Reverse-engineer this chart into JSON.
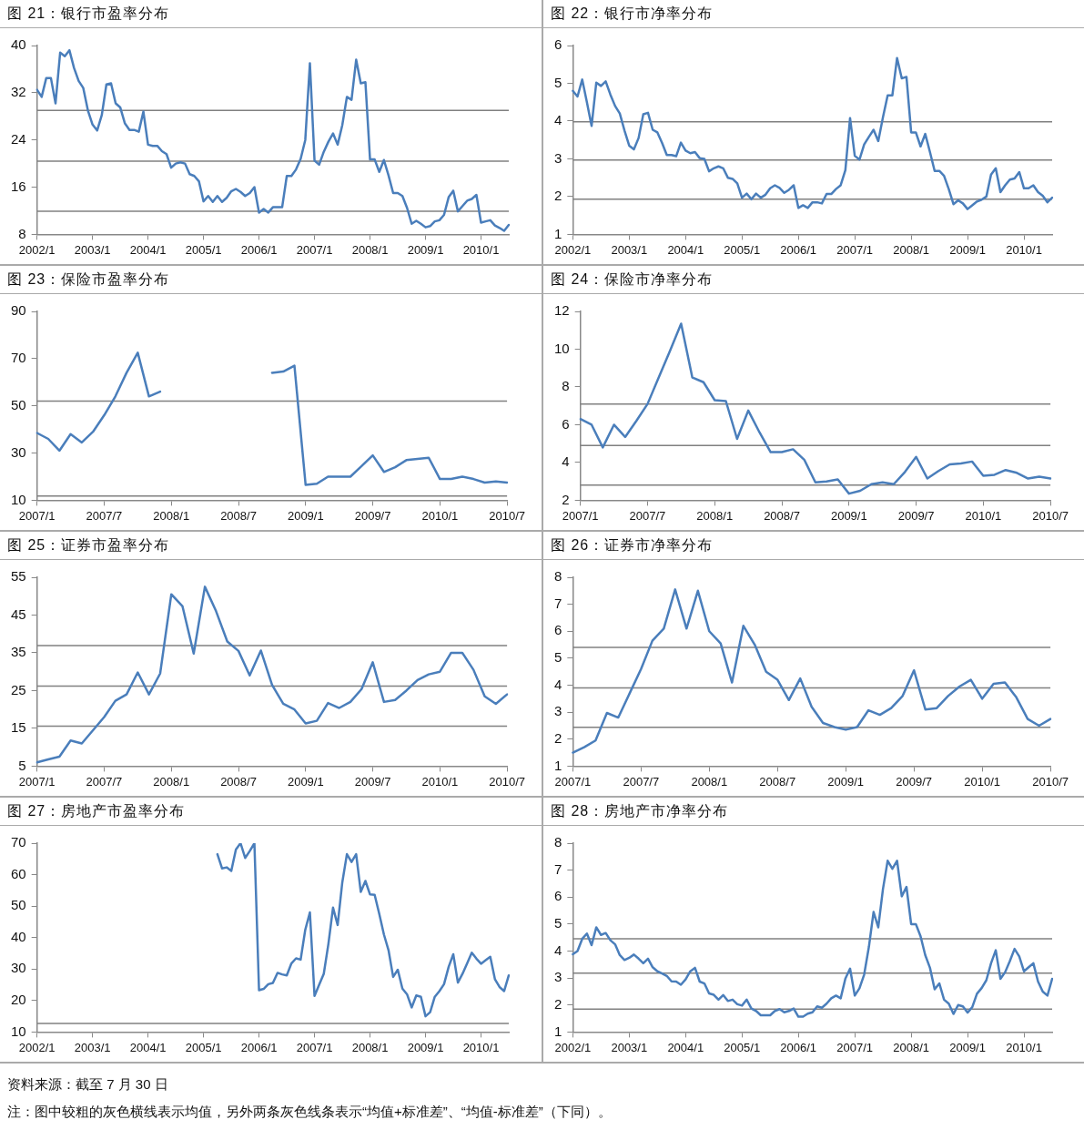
{
  "chart_data": [
    {
      "type": "line",
      "title": "图 21：银行市盈率分布",
      "categories": [
        "2002/1",
        null,
        null,
        null,
        null,
        null,
        null,
        null,
        null,
        null,
        null,
        null,
        "2003/1",
        null,
        null,
        null,
        null,
        null,
        null,
        null,
        null,
        null,
        null,
        null,
        "2004/1",
        null,
        null,
        null,
        null,
        null,
        null,
        null,
        null,
        null,
        null,
        null,
        "2005/1",
        null,
        null,
        null,
        null,
        null,
        null,
        null,
        null,
        null,
        null,
        null,
        "2006/1",
        null,
        null,
        null,
        null,
        null,
        null,
        null,
        null,
        null,
        null,
        null,
        "2007/1",
        null,
        null,
        null,
        null,
        null,
        null,
        null,
        null,
        null,
        null,
        null,
        "2008/1",
        null,
        null,
        null,
        null,
        null,
        null,
        null,
        null,
        null,
        null,
        null,
        "2009/1",
        null,
        null,
        null,
        null,
        null,
        null,
        null,
        null,
        null,
        null,
        null,
        "2010/1",
        null,
        null,
        null,
        null,
        null,
        null
      ],
      "color": "#4a7ebb",
      "values": [
        32.5,
        31.3,
        34.5,
        34.5,
        30.2,
        38.8,
        38.2,
        39.2,
        36.2,
        34,
        32.8,
        29,
        26.6,
        25.6,
        28.2,
        33.4,
        33.6,
        30.2,
        29.5,
        26.8,
        25.7,
        25.7,
        25.4,
        28.8,
        23.2,
        23,
        23,
        22.1,
        21.6,
        19.3,
        20,
        20.2,
        20,
        18.2,
        17.9,
        17,
        13.6,
        14.5,
        13.5,
        14.5,
        13.5,
        14.2,
        15.3,
        15.7,
        15.2,
        14.5,
        15,
        16,
        11.7,
        12.3,
        11.7,
        12.6,
        12.6,
        12.6,
        17.9,
        17.9,
        19,
        20.8,
        24,
        37,
        20.5,
        19.8,
        22,
        23.7,
        25.1,
        23.2,
        26.5,
        31.3,
        30.8,
        37.6,
        33.6,
        33.8,
        20.7,
        20.7,
        18.6,
        20.6,
        18,
        15,
        15,
        14.5,
        12.5,
        9.8,
        10.3,
        9.8,
        9.2,
        9.4,
        10.2,
        10.4,
        11.3,
        14.3,
        15.4,
        11.9,
        12.8,
        13.7,
        14,
        14.7,
        10,
        10.2,
        10.4,
        9.5,
        9.1,
        8.6,
        9.6
      ],
      "ylim": [
        8,
        40
      ],
      "yticks": [
        8,
        16,
        24,
        32,
        40
      ],
      "ref_lines": [
        {
          "axis": "y",
          "value": 29,
          "color": "#808080"
        },
        {
          "axis": "y",
          "value": 20.4,
          "color": "#808080"
        },
        {
          "axis": "y",
          "value": 11.9,
          "color": "#808080"
        }
      ]
    },
    {
      "type": "line",
      "title": "图 22：银行市净率分布",
      "categories": [
        "2002/1",
        null,
        null,
        null,
        null,
        null,
        null,
        null,
        null,
        null,
        null,
        null,
        "2003/1",
        null,
        null,
        null,
        null,
        null,
        null,
        null,
        null,
        null,
        null,
        null,
        "2004/1",
        null,
        null,
        null,
        null,
        null,
        null,
        null,
        null,
        null,
        null,
        null,
        "2005/1",
        null,
        null,
        null,
        null,
        null,
        null,
        null,
        null,
        null,
        null,
        null,
        "2006/1",
        null,
        null,
        null,
        null,
        null,
        null,
        null,
        null,
        null,
        null,
        null,
        "2007/1",
        null,
        null,
        null,
        null,
        null,
        null,
        null,
        null,
        null,
        null,
        null,
        "2008/1",
        null,
        null,
        null,
        null,
        null,
        null,
        null,
        null,
        null,
        null,
        null,
        "2009/1",
        null,
        null,
        null,
        null,
        null,
        null,
        null,
        null,
        null,
        null,
        null,
        "2010/1",
        null,
        null,
        null,
        null,
        null,
        null
      ],
      "color": "#4a7ebb",
      "values": [
        4.8,
        4.65,
        5.1,
        4.5,
        3.87,
        5.02,
        4.93,
        5.05,
        4.7,
        4.4,
        4.2,
        3.75,
        3.35,
        3.25,
        3.55,
        4.18,
        4.22,
        3.77,
        3.7,
        3.42,
        3.1,
        3.1,
        3.07,
        3.43,
        3.22,
        3.15,
        3.18,
        3.02,
        3,
        2.67,
        2.75,
        2.8,
        2.75,
        2.5,
        2.47,
        2.35,
        1.97,
        2.08,
        1.93,
        2.08,
        1.97,
        2.05,
        2.22,
        2.3,
        2.23,
        2.1,
        2.18,
        2.3,
        1.7,
        1.77,
        1.7,
        1.85,
        1.85,
        1.82,
        2.07,
        2.07,
        2.2,
        2.3,
        2.7,
        4.08,
        3.08,
        2.98,
        3.38,
        3.58,
        3.77,
        3.47,
        4.1,
        4.68,
        4.68,
        5.67,
        5.13,
        5.17,
        3.7,
        3.7,
        3.33,
        3.66,
        3.18,
        2.68,
        2.68,
        2.55,
        2.2,
        1.8,
        1.9,
        1.82,
        1.67,
        1.77,
        1.87,
        1.92,
        2,
        2.58,
        2.75,
        2.12,
        2.3,
        2.45,
        2.48,
        2.65,
        2.22,
        2.22,
        2.3,
        2.12,
        2.02,
        1.85,
        1.97
      ],
      "ylim": [
        1,
        6
      ],
      "yticks": [
        1,
        2,
        3,
        4,
        5,
        6
      ],
      "ref_lines": [
        {
          "axis": "y",
          "value": 3.98,
          "color": "#808080"
        },
        {
          "axis": "y",
          "value": 2.97,
          "color": "#808080"
        },
        {
          "axis": "y",
          "value": 1.93,
          "color": "#808080"
        }
      ]
    },
    {
      "type": "line",
      "title": "图 23：保险市盈率分布",
      "categories": [
        "2007/1",
        null,
        null,
        null,
        null,
        null,
        "2007/7",
        null,
        null,
        null,
        null,
        null,
        "2008/1",
        null,
        null,
        null,
        null,
        null,
        "2008/7",
        null,
        null,
        null,
        null,
        null,
        "2009/1",
        null,
        null,
        null,
        null,
        null,
        "2009/7",
        null,
        null,
        null,
        null,
        null,
        "2010/1",
        null,
        null,
        null,
        null,
        null,
        "2010/7"
      ],
      "color": "#4a7ebb",
      "values": [
        38.5,
        36,
        31,
        38,
        34.5,
        39,
        46,
        54,
        64,
        72.5,
        54,
        56,
        null,
        null,
        null,
        null,
        null,
        null,
        null,
        null,
        null,
        64,
        64.5,
        67,
        16.5,
        17,
        20,
        20,
        20,
        24.5,
        29,
        22,
        24,
        27,
        27.5,
        28,
        19,
        19,
        20,
        19,
        17.5,
        18,
        17.5
      ],
      "ylim": [
        10,
        90
      ],
      "yticks": [
        10,
        30,
        50,
        70,
        90
      ],
      "ref_lines": [
        {
          "axis": "y",
          "value": 52,
          "color": "#808080"
        },
        {
          "axis": "y",
          "value": 11.8,
          "color": "#808080"
        }
      ]
    },
    {
      "type": "line",
      "title": "图 24：保险市净率分布",
      "categories": [
        "2007/1",
        null,
        null,
        null,
        null,
        null,
        "2007/7",
        null,
        null,
        null,
        null,
        null,
        "2008/1",
        null,
        null,
        null,
        null,
        null,
        "2008/7",
        null,
        null,
        null,
        null,
        null,
        "2009/1",
        null,
        null,
        null,
        null,
        null,
        "2009/7",
        null,
        null,
        null,
        null,
        null,
        "2010/1",
        null,
        null,
        null,
        null,
        null,
        "2010/7"
      ],
      "color": "#4a7ebb",
      "values": [
        6.3,
        6,
        4.8,
        6,
        5.35,
        6.2,
        7.1,
        8.5,
        9.9,
        11.35,
        8.5,
        8.25,
        7.3,
        7.25,
        5.25,
        6.75,
        5.6,
        4.55,
        4.55,
        4.7,
        4.15,
        2.95,
        3,
        3.1,
        2.35,
        2.5,
        2.85,
        2.95,
        2.85,
        3.5,
        4.3,
        3.15,
        3.55,
        3.9,
        3.95,
        4.05,
        3.3,
        3.35,
        3.6,
        3.45,
        3.15,
        3.25,
        3.15
      ],
      "ylim": [
        2,
        12
      ],
      "yticks": [
        2,
        4,
        6,
        8,
        10,
        12
      ],
      "ref_lines": [
        {
          "axis": "y",
          "value": 7.1,
          "color": "#808080"
        },
        {
          "axis": "y",
          "value": 4.9,
          "color": "#808080"
        },
        {
          "axis": "y",
          "value": 2.8,
          "color": "#808080"
        }
      ]
    },
    {
      "type": "line",
      "title": "图 25：证券市盈率分布",
      "categories": [
        "2007/1",
        null,
        null,
        null,
        null,
        null,
        "2007/7",
        null,
        null,
        null,
        null,
        null,
        "2008/1",
        null,
        null,
        null,
        null,
        null,
        "2008/7",
        null,
        null,
        null,
        null,
        null,
        "2009/1",
        null,
        null,
        null,
        null,
        null,
        "2009/7",
        null,
        null,
        null,
        null,
        null,
        "2010/1",
        null,
        null,
        null,
        null,
        null,
        "2010/7"
      ],
      "color": "#4a7ebb",
      "values": [
        6,
        6.8,
        7.5,
        11.8,
        11,
        14.5,
        18,
        22.3,
        24,
        29.8,
        24,
        29.5,
        50.5,
        47.3,
        34.8,
        52.5,
        46,
        38,
        35.5,
        29,
        35.6,
        26.5,
        21.5,
        20,
        16.3,
        17,
        21.7,
        20.4,
        22,
        25.4,
        32.5,
        22,
        22.5,
        25,
        27.8,
        29.3,
        30,
        35,
        35,
        30.5,
        23.5,
        21.5,
        24
      ],
      "ylim": [
        5,
        55
      ],
      "yticks": [
        5,
        15,
        25,
        35,
        45,
        55
      ],
      "ref_lines": [
        {
          "axis": "y",
          "value": 36.9,
          "color": "#808080"
        },
        {
          "axis": "y",
          "value": 26.2,
          "color": "#808080"
        },
        {
          "axis": "y",
          "value": 15.6,
          "color": "#808080"
        }
      ]
    },
    {
      "type": "line",
      "title": "图 26：证券市净率分布",
      "categories": [
        "2007/1",
        null,
        null,
        null,
        null,
        null,
        "2007/7",
        null,
        null,
        null,
        null,
        null,
        "2008/1",
        null,
        null,
        null,
        null,
        null,
        "2008/7",
        null,
        null,
        null,
        null,
        null,
        "2009/1",
        null,
        null,
        null,
        null,
        null,
        "2009/7",
        null,
        null,
        null,
        null,
        null,
        "2010/1",
        null,
        null,
        null,
        null,
        null,
        "2010/7"
      ],
      "color": "#4a7ebb",
      "values": [
        1.5,
        1.7,
        1.95,
        2.97,
        2.8,
        3.7,
        4.6,
        5.65,
        6.1,
        7.55,
        6.1,
        7.5,
        6,
        5.55,
        4.1,
        6.2,
        5.5,
        4.5,
        4.2,
        3.45,
        4.25,
        3.2,
        2.6,
        2.45,
        2.35,
        2.45,
        3.07,
        2.9,
        3.15,
        3.6,
        4.55,
        3.1,
        3.15,
        3.6,
        3.95,
        4.2,
        3.5,
        4.05,
        4.1,
        3.55,
        2.75,
        2.5,
        2.75
      ],
      "ylim": [
        1,
        8
      ],
      "yticks": [
        1,
        2,
        3,
        4,
        5,
        6,
        7,
        8
      ],
      "ref_lines": [
        {
          "axis": "y",
          "value": 5.4,
          "color": "#808080"
        },
        {
          "axis": "y",
          "value": 3.9,
          "color": "#808080"
        },
        {
          "axis": "y",
          "value": 2.44,
          "color": "#808080"
        }
      ]
    },
    {
      "type": "line",
      "title": "图 27：房地产市盈率分布",
      "categories": [
        "2002/1",
        null,
        null,
        null,
        null,
        null,
        null,
        null,
        null,
        null,
        null,
        null,
        "2003/1",
        null,
        null,
        null,
        null,
        null,
        null,
        null,
        null,
        null,
        null,
        null,
        "2004/1",
        null,
        null,
        null,
        null,
        null,
        null,
        null,
        null,
        null,
        null,
        null,
        "2005/1",
        null,
        null,
        null,
        null,
        null,
        null,
        null,
        null,
        null,
        null,
        null,
        "2006/1",
        null,
        null,
        null,
        null,
        null,
        null,
        null,
        null,
        null,
        null,
        null,
        "2007/1",
        null,
        null,
        null,
        null,
        null,
        null,
        null,
        null,
        null,
        null,
        null,
        "2008/1",
        null,
        null,
        null,
        null,
        null,
        null,
        null,
        null,
        null,
        null,
        null,
        "2009/1",
        null,
        null,
        null,
        null,
        null,
        null,
        null,
        null,
        null,
        null,
        null,
        "2010/1",
        null,
        null,
        null,
        null,
        null,
        null
      ],
      "color": "#4a7ebb",
      "values": [
        null,
        null,
        null,
        null,
        null,
        null,
        null,
        null,
        null,
        null,
        null,
        null,
        null,
        null,
        null,
        null,
        null,
        null,
        null,
        null,
        null,
        null,
        null,
        null,
        null,
        null,
        null,
        null,
        null,
        null,
        null,
        null,
        null,
        null,
        null,
        null,
        null,
        null,
        null,
        66.5,
        62,
        62.3,
        61.2,
        68,
        70,
        65.3,
        67.5,
        70,
        23.3,
        23.7,
        25.2,
        25.6,
        28.8,
        28.3,
        28,
        31.8,
        33.4,
        33,
        42.5,
        48,
        21.5,
        25,
        28.5,
        38,
        49.5,
        44,
        57.5,
        66.5,
        64,
        66.5,
        54.5,
        58,
        53.7,
        53.6,
        47.5,
        41,
        36,
        27.5,
        29.8,
        23.8,
        22,
        17.8,
        21.6,
        21.2,
        15,
        16.3,
        21.2,
        23,
        25.2,
        30.7,
        34.7,
        25.7,
        28.5,
        31.8,
        35.2,
        33.3,
        31.7,
        32.8,
        33.9,
        26.8,
        24.3,
        23,
        28
      ],
      "ylim": [
        10,
        70
      ],
      "yticks": [
        10,
        20,
        30,
        40,
        50,
        60,
        70
      ],
      "ref_lines": [
        {
          "axis": "y",
          "value": 12.7,
          "color": "#808080"
        }
      ]
    },
    {
      "type": "line",
      "title": "图 28：房地产市净率分布",
      "categories": [
        "2002/1",
        null,
        null,
        null,
        null,
        null,
        null,
        null,
        null,
        null,
        null,
        null,
        "2003/1",
        null,
        null,
        null,
        null,
        null,
        null,
        null,
        null,
        null,
        null,
        null,
        "2004/1",
        null,
        null,
        null,
        null,
        null,
        null,
        null,
        null,
        null,
        null,
        null,
        "2005/1",
        null,
        null,
        null,
        null,
        null,
        null,
        null,
        null,
        null,
        null,
        null,
        "2006/1",
        null,
        null,
        null,
        null,
        null,
        null,
        null,
        null,
        null,
        null,
        null,
        "2007/1",
        null,
        null,
        null,
        null,
        null,
        null,
        null,
        null,
        null,
        null,
        null,
        "2008/1",
        null,
        null,
        null,
        null,
        null,
        null,
        null,
        null,
        null,
        null,
        null,
        "2009/1",
        null,
        null,
        null,
        null,
        null,
        null,
        null,
        null,
        null,
        null,
        null,
        "2010/1",
        null,
        null,
        null,
        null,
        null,
        null
      ],
      "color": "#4a7ebb",
      "values": [
        3.88,
        4,
        4.45,
        4.65,
        4.22,
        4.88,
        4.6,
        4.67,
        4.4,
        4.25,
        3.85,
        3.67,
        3.75,
        3.87,
        3.72,
        3.55,
        3.72,
        3.4,
        3.25,
        3.17,
        3.08,
        2.88,
        2.87,
        2.75,
        2.95,
        3.25,
        3.38,
        2.87,
        2.8,
        2.43,
        2.38,
        2.2,
        2.37,
        2.15,
        2.2,
        2.03,
        1.98,
        2.2,
        1.87,
        1.78,
        1.62,
        1.62,
        1.62,
        1.78,
        1.85,
        1.73,
        1.78,
        1.87,
        1.57,
        1.57,
        1.68,
        1.73,
        1.95,
        1.9,
        2.05,
        2.25,
        2.35,
        2.25,
        2.98,
        3.35,
        2.35,
        2.62,
        3.13,
        4.15,
        5.45,
        4.88,
        6.3,
        7.35,
        7.05,
        7.35,
        6.03,
        6.38,
        5,
        5,
        4.55,
        3.85,
        3.38,
        2.58,
        2.8,
        2.2,
        2.05,
        1.67,
        2,
        1.95,
        1.72,
        1.92,
        2.42,
        2.63,
        2.92,
        3.55,
        4.03,
        2.97,
        3.22,
        3.63,
        4.08,
        3.8,
        3.25,
        3.4,
        3.55,
        2.87,
        2.5,
        2.35,
        2.97
      ],
      "ylim": [
        1,
        8
      ],
      "yticks": [
        1,
        2,
        3,
        4,
        5,
        6,
        7,
        8
      ],
      "ref_lines": [
        {
          "axis": "y",
          "value": 4.46,
          "color": "#808080"
        },
        {
          "axis": "y",
          "value": 3.18,
          "color": "#808080"
        },
        {
          "axis": "y",
          "value": 1.85,
          "color": "#808080"
        }
      ],
      "annotations": [
        "资料来源：截至 7 月 30 日",
        "注：图中较粗的灰色横线表示均值，另外两条灰色线条表示“均值+标准差”、“均值-标准差”（下同）。"
      ]
    }
  ]
}
